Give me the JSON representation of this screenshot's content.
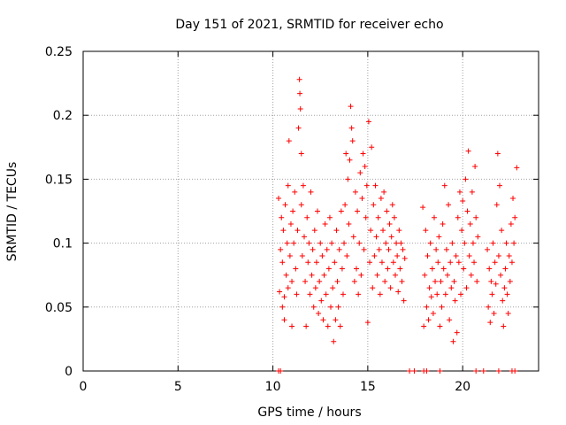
{
  "chart_data": {
    "type": "scatter",
    "title": "Day 151 of 2021, SRMTID for receiver echo",
    "xlabel": "GPS time / hours",
    "ylabel": "SRMTID / TECUs",
    "xlim": [
      0,
      24
    ],
    "ylim": [
      0,
      0.25
    ],
    "xticks": [
      0,
      5,
      10,
      15,
      20
    ],
    "xtick_labels": [
      "0",
      "5",
      "10",
      "15",
      "20"
    ],
    "yticks": [
      0,
      0.05,
      0.1,
      0.15,
      0.2,
      0.25
    ],
    "ytick_labels": [
      "0",
      "0.05",
      "0.1",
      "0.15",
      "0.2",
      "0.25"
    ],
    "grid": true,
    "marker": "+",
    "color": "#ff0000",
    "series": [
      {
        "name": "SRMTID",
        "points": [
          [
            10.3,
            0.135
          ],
          [
            10.35,
            0.062
          ],
          [
            10.4,
            0.095
          ],
          [
            10.45,
            0.12
          ],
          [
            10.5,
            0.05
          ],
          [
            10.5,
            0.085
          ],
          [
            10.55,
            0.11
          ],
          [
            10.6,
            0.058
          ],
          [
            10.6,
            0.04
          ],
          [
            10.65,
            0.13
          ],
          [
            10.7,
            0.075
          ],
          [
            10.75,
            0.1
          ],
          [
            10.8,
            0.145
          ],
          [
            10.8,
            0.065
          ],
          [
            10.85,
            0.18
          ],
          [
            10.9,
            0.09
          ],
          [
            10.95,
            0.115
          ],
          [
            11.0,
            0.035
          ],
          [
            11.0,
            0.07
          ],
          [
            11.05,
            0.125
          ],
          [
            11.1,
            0.1
          ],
          [
            11.15,
            0.14
          ],
          [
            11.2,
            0.08
          ],
          [
            11.25,
            0.06
          ],
          [
            11.3,
            0.11
          ],
          [
            11.35,
            0.19
          ],
          [
            11.4,
            0.228
          ],
          [
            11.42,
            0.217
          ],
          [
            11.45,
            0.205
          ],
          [
            11.5,
            0.17
          ],
          [
            11.5,
            0.13
          ],
          [
            11.55,
            0.09
          ],
          [
            11.6,
            0.145
          ],
          [
            11.65,
            0.105
          ],
          [
            11.7,
            0.07
          ],
          [
            11.75,
            0.035
          ],
          [
            11.8,
            0.12
          ],
          [
            11.85,
            0.085
          ],
          [
            11.9,
            0.1
          ],
          [
            11.95,
            0.06
          ],
          [
            12.0,
            0.14
          ],
          [
            12.05,
            0.075
          ],
          [
            12.1,
            0.095
          ],
          [
            12.15,
            0.05
          ],
          [
            12.2,
            0.11
          ],
          [
            12.25,
            0.065
          ],
          [
            12.3,
            0.085
          ],
          [
            12.35,
            0.125
          ],
          [
            12.4,
            0.045
          ],
          [
            12.45,
            0.07
          ],
          [
            12.5,
            0.1
          ],
          [
            12.55,
            0.055
          ],
          [
            12.6,
            0.09
          ],
          [
            12.65,
            0.04
          ],
          [
            12.7,
            0.075
          ],
          [
            12.75,
            0.115
          ],
          [
            12.8,
            0.06
          ],
          [
            12.85,
            0.095
          ],
          [
            12.9,
            0.035
          ],
          [
            12.95,
            0.08
          ],
          [
            13.0,
            0.12
          ],
          [
            13.05,
            0.05
          ],
          [
            13.1,
            0.1
          ],
          [
            13.15,
            0.065
          ],
          [
            13.2,
            0.023
          ],
          [
            13.25,
            0.085
          ],
          [
            13.3,
            0.04
          ],
          [
            13.35,
            0.11
          ],
          [
            13.4,
            0.07
          ],
          [
            13.45,
            0.05
          ],
          [
            13.5,
            0.095
          ],
          [
            13.55,
            0.035
          ],
          [
            13.6,
            0.125
          ],
          [
            13.65,
            0.08
          ],
          [
            13.7,
            0.06
          ],
          [
            13.75,
            0.1
          ],
          [
            13.8,
            0.13
          ],
          [
            13.85,
            0.17
          ],
          [
            13.9,
            0.09
          ],
          [
            13.95,
            0.15
          ],
          [
            14.0,
            0.115
          ],
          [
            14.05,
            0.165
          ],
          [
            14.1,
            0.207
          ],
          [
            14.15,
            0.19
          ],
          [
            14.2,
            0.18
          ],
          [
            14.25,
            0.105
          ],
          [
            14.3,
            0.07
          ],
          [
            14.35,
            0.14
          ],
          [
            14.4,
            0.08
          ],
          [
            14.45,
            0.125
          ],
          [
            14.5,
            0.06
          ],
          [
            14.55,
            0.1
          ],
          [
            14.6,
            0.155
          ],
          [
            14.65,
            0.075
          ],
          [
            14.7,
            0.135
          ],
          [
            14.75,
            0.17
          ],
          [
            14.8,
            0.095
          ],
          [
            14.85,
            0.16
          ],
          [
            14.9,
            0.12
          ],
          [
            14.95,
            0.145
          ],
          [
            15.0,
            0.038
          ],
          [
            15.05,
            0.195
          ],
          [
            15.1,
            0.085
          ],
          [
            15.15,
            0.11
          ],
          [
            15.2,
            0.175
          ],
          [
            15.25,
            0.065
          ],
          [
            15.3,
            0.13
          ],
          [
            15.35,
            0.09
          ],
          [
            15.4,
            0.145
          ],
          [
            15.45,
            0.105
          ],
          [
            15.5,
            0.075
          ],
          [
            15.55,
            0.12
          ],
          [
            15.6,
            0.095
          ],
          [
            15.65,
            0.06
          ],
          [
            15.7,
            0.135
          ],
          [
            15.75,
            0.085
          ],
          [
            15.8,
            0.11
          ],
          [
            15.85,
            0.14
          ],
          [
            15.9,
            0.07
          ],
          [
            15.95,
            0.1
          ],
          [
            16.0,
            0.125
          ],
          [
            16.05,
            0.08
          ],
          [
            16.1,
            0.095
          ],
          [
            16.15,
            0.115
          ],
          [
            16.2,
            0.065
          ],
          [
            16.25,
            0.105
          ],
          [
            16.3,
            0.13
          ],
          [
            16.35,
            0.085
          ],
          [
            16.4,
            0.12
          ],
          [
            16.45,
            0.075
          ],
          [
            16.5,
            0.1
          ],
          [
            16.55,
            0.09
          ],
          [
            16.6,
            0.062
          ],
          [
            16.65,
            0.11
          ],
          [
            16.7,
            0.08
          ],
          [
            16.75,
            0.1
          ],
          [
            16.8,
            0.07
          ],
          [
            16.85,
            0.095
          ],
          [
            16.9,
            0.055
          ],
          [
            16.95,
            0.088
          ],
          [
            17.9,
            0.128
          ],
          [
            17.95,
            0.035
          ],
          [
            18.0,
            0.075
          ],
          [
            18.05,
            0.11
          ],
          [
            18.1,
            0.05
          ],
          [
            18.15,
            0.09
          ],
          [
            18.2,
            0.04
          ],
          [
            18.25,
            0.065
          ],
          [
            18.3,
            0.1
          ],
          [
            18.35,
            0.058
          ],
          [
            18.4,
            0.08
          ],
          [
            18.45,
            0.045
          ],
          [
            18.5,
            0.12
          ],
          [
            18.55,
            0.07
          ],
          [
            18.6,
            0.095
          ],
          [
            18.65,
            0.06
          ],
          [
            18.7,
            0.085
          ],
          [
            18.75,
            0.105
          ],
          [
            18.8,
            0.035
          ],
          [
            18.85,
            0.07
          ],
          [
            18.9,
            0.05
          ],
          [
            18.95,
            0.115
          ],
          [
            19.0,
            0.08
          ],
          [
            19.05,
            0.145
          ],
          [
            19.1,
            0.06
          ],
          [
            19.15,
            0.095
          ],
          [
            19.2,
            0.075
          ],
          [
            19.25,
            0.13
          ],
          [
            19.3,
            0.04
          ],
          [
            19.35,
            0.085
          ],
          [
            19.4,
            0.065
          ],
          [
            19.45,
            0.1
          ],
          [
            19.5,
            0.023
          ],
          [
            19.55,
            0.07
          ],
          [
            19.6,
            0.055
          ],
          [
            19.65,
            0.09
          ],
          [
            19.7,
            0.03
          ],
          [
            19.75,
            0.12
          ],
          [
            19.8,
            0.085
          ],
          [
            19.85,
            0.14
          ],
          [
            19.9,
            0.06
          ],
          [
            19.95,
            0.11
          ],
          [
            20.0,
            0.133
          ],
          [
            20.05,
            0.08
          ],
          [
            20.1,
            0.1
          ],
          [
            20.15,
            0.15
          ],
          [
            20.2,
            0.065
          ],
          [
            20.25,
            0.125
          ],
          [
            20.3,
            0.172
          ],
          [
            20.35,
            0.09
          ],
          [
            20.4,
            0.115
          ],
          [
            20.45,
            0.075
          ],
          [
            20.5,
            0.14
          ],
          [
            20.55,
            0.1
          ],
          [
            20.6,
            0.085
          ],
          [
            20.65,
            0.16
          ],
          [
            20.7,
            0.12
          ],
          [
            20.75,
            0.07
          ],
          [
            20.8,
            0.105
          ],
          [
            21.3,
            0.095
          ],
          [
            21.35,
            0.05
          ],
          [
            21.4,
            0.08
          ],
          [
            21.45,
            0.038
          ],
          [
            21.5,
            0.07
          ],
          [
            21.55,
            0.06
          ],
          [
            21.6,
            0.1
          ],
          [
            21.65,
            0.045
          ],
          [
            21.7,
            0.085
          ],
          [
            21.75,
            0.068
          ],
          [
            21.8,
            0.13
          ],
          [
            21.85,
            0.17
          ],
          [
            21.9,
            0.09
          ],
          [
            21.95,
            0.145
          ],
          [
            22.0,
            0.075
          ],
          [
            22.05,
            0.11
          ],
          [
            22.1,
            0.055
          ],
          [
            22.15,
            0.035
          ],
          [
            22.2,
            0.065
          ],
          [
            22.25,
            0.08
          ],
          [
            22.3,
            0.1
          ],
          [
            22.35,
            0.06
          ],
          [
            22.4,
            0.045
          ],
          [
            22.45,
            0.09
          ],
          [
            22.5,
            0.07
          ],
          [
            22.55,
            0.115
          ],
          [
            22.6,
            0.085
          ],
          [
            22.65,
            0.135
          ],
          [
            22.7,
            0.1
          ],
          [
            22.75,
            0.12
          ],
          [
            22.85,
            0.159
          ]
        ]
      },
      {
        "name": "zero",
        "points": [
          [
            10.3,
            0
          ],
          [
            10.4,
            0
          ],
          [
            17.2,
            0
          ],
          [
            17.45,
            0
          ],
          [
            17.95,
            0
          ],
          [
            18.1,
            0
          ],
          [
            18.8,
            0
          ],
          [
            20.7,
            0
          ],
          [
            21.1,
            0
          ],
          [
            21.9,
            0
          ],
          [
            22.6,
            0
          ],
          [
            22.75,
            0
          ]
        ]
      }
    ]
  }
}
